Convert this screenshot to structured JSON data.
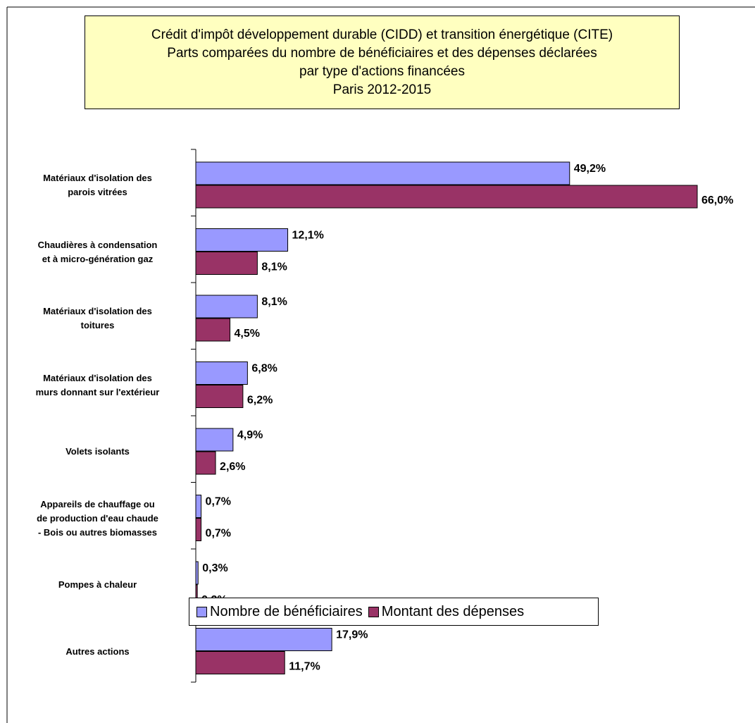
{
  "chart_data": {
    "type": "bar",
    "orientation": "horizontal",
    "title": "Crédit d'impôt développement durable (CIDD) et transition énergétique (CITE)\nParts comparées du nombre de bénéficiaires et des dépenses déclarées\npar type d'actions financées\nParis 2012-2015",
    "categories": [
      "Matériaux d'isolation des\nparois vitrées",
      "Chaudières à condensation\net à micro-génération gaz",
      "Matériaux d'isolation des\ntoitures",
      "Matériaux d'isolation des\nmurs donnant sur l'extérieur",
      "Volets isolants",
      "Appareils de chauffage ou\nde production d'eau chaude\n- Bois ou autres biomasses",
      "Pompes à chaleur",
      "Autres actions"
    ],
    "series": [
      {
        "name": "Nombre de bénéficiaires",
        "color": "#9999ff",
        "values": [
          49.2,
          12.1,
          8.1,
          6.8,
          4.9,
          0.7,
          0.3,
          17.9
        ],
        "value_labels": [
          "49,2%",
          "12,1%",
          "8,1%",
          "6,8%",
          "4,9%",
          "0,7%",
          "0,3%",
          "17,9%"
        ]
      },
      {
        "name": "Montant des dépenses",
        "color": "#993366",
        "values": [
          66.0,
          8.1,
          4.5,
          6.2,
          2.6,
          0.7,
          0.2,
          11.7
        ],
        "value_labels": [
          "66,0%",
          "8,1%",
          "4,5%",
          "6,2%",
          "2,6%",
          "0,7%",
          "0,2%",
          "11,7%"
        ]
      }
    ],
    "legend": "bottom"
  }
}
